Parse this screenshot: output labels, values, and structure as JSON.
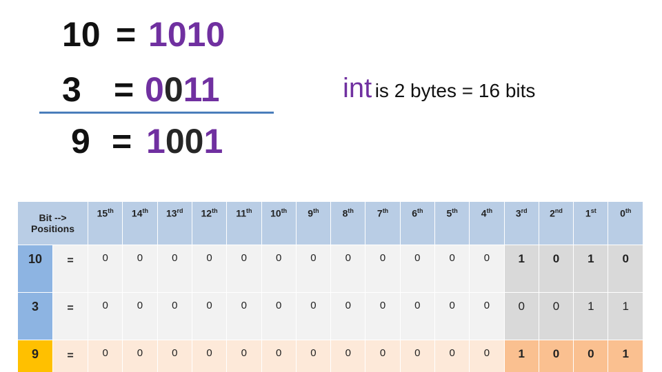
{
  "equations": [
    {
      "operand": "10",
      "sign": "=",
      "digits": [
        "1",
        "0",
        "1",
        "0"
      ]
    },
    {
      "operand": "3",
      "sign": "=",
      "digits": [
        "0",
        "0",
        "1",
        "1"
      ]
    },
    {
      "operand": "9",
      "sign": "=",
      "digits": [
        "1",
        "0",
        "0",
        "1"
      ]
    }
  ],
  "note": {
    "keyword": "int",
    "text": "is 2 bytes = 16 bits"
  },
  "table": {
    "header": {
      "label": [
        "Bit -->",
        "Positions"
      ],
      "positions": [
        {
          "num": "15",
          "suffix": "th"
        },
        {
          "num": "14",
          "suffix": "th"
        },
        {
          "num": "13",
          "suffix": "rd"
        },
        {
          "num": "12",
          "suffix": "th"
        },
        {
          "num": "11",
          "suffix": "th"
        },
        {
          "num": "10",
          "suffix": "th"
        },
        {
          "num": "9",
          "suffix": "th"
        },
        {
          "num": "8",
          "suffix": "th"
        },
        {
          "num": "7",
          "suffix": "th"
        },
        {
          "num": "6",
          "suffix": "th"
        },
        {
          "num": "5",
          "suffix": "th"
        },
        {
          "num": "4",
          "suffix": "th"
        },
        {
          "num": "3",
          "suffix": "rd"
        },
        {
          "num": "2",
          "suffix": "nd"
        },
        {
          "num": "1",
          "suffix": "st"
        },
        {
          "num": "0",
          "suffix": "th"
        }
      ]
    },
    "rows": [
      {
        "label": "10",
        "sign": "=",
        "bits": [
          0,
          0,
          0,
          0,
          0,
          0,
          0,
          0,
          0,
          0,
          0,
          0,
          1,
          0,
          1,
          0
        ]
      },
      {
        "label": "3",
        "sign": "=",
        "bits": [
          0,
          0,
          0,
          0,
          0,
          0,
          0,
          0,
          0,
          0,
          0,
          0,
          0,
          0,
          1,
          1
        ]
      },
      {
        "label": "9",
        "sign": "=",
        "bits": [
          0,
          0,
          0,
          0,
          0,
          0,
          0,
          0,
          0,
          0,
          0,
          0,
          1,
          0,
          0,
          1
        ]
      }
    ]
  }
}
